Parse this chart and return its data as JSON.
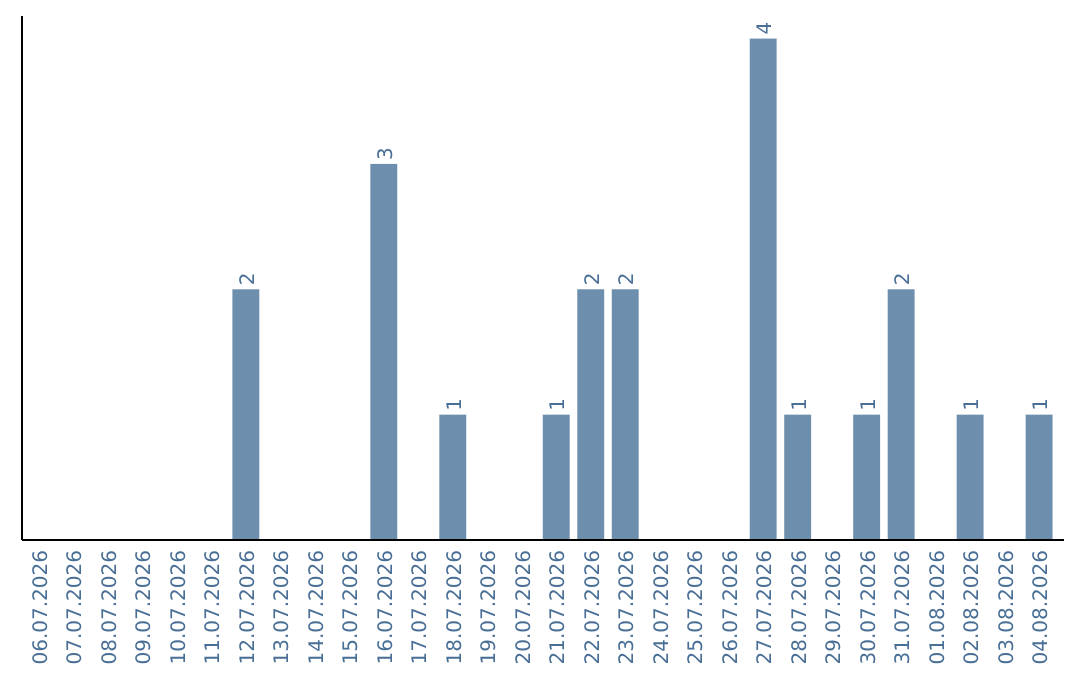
{
  "chart_data": {
    "type": "bar",
    "categories": [
      "06.07.2026",
      "07.07.2026",
      "08.07.2026",
      "09.07.2026",
      "10.07.2026",
      "11.07.2026",
      "12.07.2026",
      "13.07.2026",
      "14.07.2026",
      "15.07.2026",
      "16.07.2026",
      "17.07.2026",
      "18.07.2026",
      "19.07.2026",
      "20.07.2026",
      "21.07.2026",
      "22.07.2026",
      "23.07.2026",
      "24.07.2026",
      "25.07.2026",
      "26.07.2026",
      "27.07.2026",
      "28.07.2026",
      "29.07.2026",
      "30.07.2026",
      "31.07.2026",
      "01.08.2026",
      "02.08.2026",
      "03.08.2026",
      "04.08.2026"
    ],
    "values": [
      0,
      0,
      0,
      0,
      0,
      0,
      2,
      0,
      0,
      0,
      3,
      0,
      1,
      0,
      0,
      1,
      2,
      2,
      0,
      0,
      0,
      4,
      1,
      0,
      1,
      2,
      0,
      1,
      0,
      1
    ],
    "value_labels": [
      null,
      null,
      null,
      null,
      null,
      null,
      "2",
      null,
      null,
      null,
      "3",
      null,
      "1",
      null,
      null,
      "1",
      "2",
      "2",
      null,
      null,
      null,
      "4",
      "1",
      null,
      "1",
      "2",
      null,
      "1",
      null,
      "1"
    ],
    "color": "#6d8fad"
  }
}
